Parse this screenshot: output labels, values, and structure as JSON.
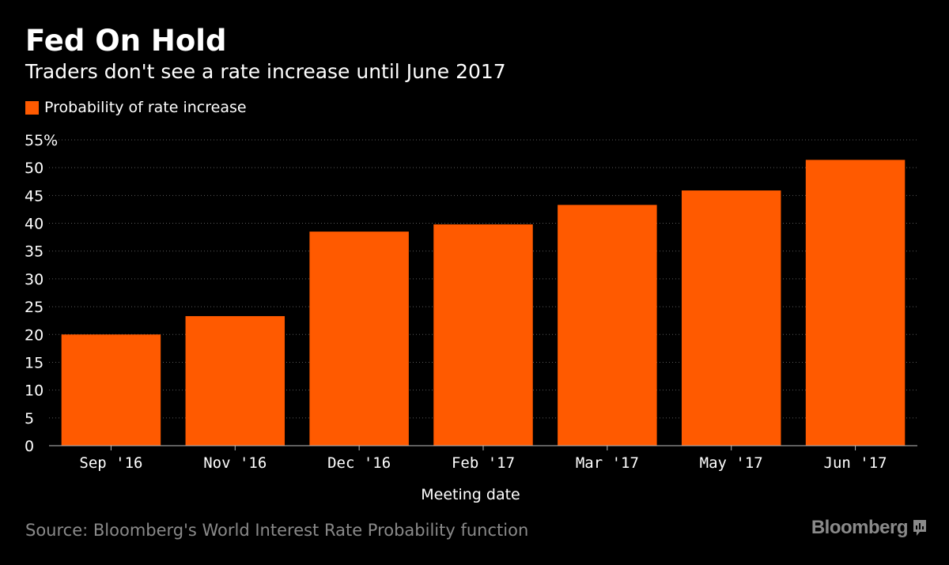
{
  "header": {
    "title": "Fed On Hold",
    "subtitle": "Traders don't see a rate increase until June 2017"
  },
  "legend": {
    "label": "Probability of rate increase"
  },
  "colors": {
    "background": "#000000",
    "bar": "#ff5a00",
    "grid": "#5a5a5a",
    "text": "#ffffff",
    "muted": "#8a8a8a"
  },
  "chart_data": {
    "type": "bar",
    "categories": [
      "Sep '16",
      "Nov '16",
      "Dec '16",
      "Feb '17",
      "Mar '17",
      "May '17",
      "Jun '17"
    ],
    "series": [
      {
        "name": "Probability of rate increase",
        "values": [
          20.0,
          23.3,
          38.5,
          39.8,
          43.3,
          45.9,
          51.4
        ]
      }
    ],
    "ylim": [
      0,
      55
    ],
    "yticks": [
      0,
      5,
      10,
      15,
      20,
      25,
      30,
      35,
      40,
      45,
      50,
      55
    ],
    "ytick_labels": [
      "0",
      "5",
      "10",
      "15",
      "20",
      "25",
      "30",
      "35",
      "40",
      "45",
      "50",
      "55%"
    ],
    "xlabel": "Meeting date",
    "ylabel": "",
    "grid": true,
    "legend_position": "top-left"
  },
  "footer": {
    "source": "Source: Bloomberg's World Interest Rate Probability function",
    "logo": "Bloomberg",
    "logo_icon": "bloomberg-terminal-icon"
  }
}
